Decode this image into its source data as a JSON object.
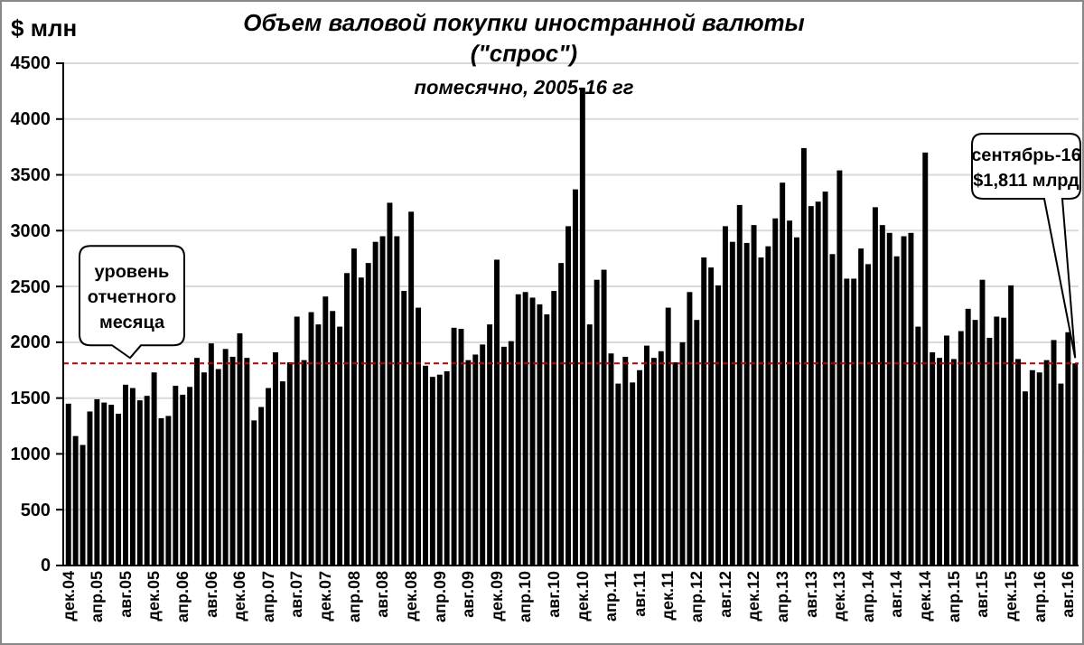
{
  "chart_data": {
    "type": "bar",
    "title": "Объем валовой покупки иностранной валюты\n(\"спрос\")",
    "subtitle": "помесячно, 2005-16 гг",
    "ylabel": "$ млн",
    "categories": [
      "дек.04",
      null,
      null,
      null,
      "апр.05",
      null,
      null,
      null,
      "авг.05",
      null,
      null,
      null,
      "дек.05",
      null,
      null,
      null,
      "апр.06",
      null,
      null,
      null,
      "авг.06",
      null,
      null,
      null,
      "дек.06",
      null,
      null,
      null,
      "апр.07",
      null,
      null,
      null,
      "авг.07",
      null,
      null,
      null,
      "дек.07",
      null,
      null,
      null,
      "апр.08",
      null,
      null,
      null,
      "авг.08",
      null,
      null,
      null,
      "дек.08",
      null,
      null,
      null,
      "апр.09",
      null,
      null,
      null,
      "авг.09",
      null,
      null,
      null,
      "дек.09",
      null,
      null,
      null,
      "апр.10",
      null,
      null,
      null,
      "авг.10",
      null,
      null,
      null,
      "дек.10",
      null,
      null,
      null,
      "апр.11",
      null,
      null,
      null,
      "авг.11",
      null,
      null,
      null,
      "дек.11",
      null,
      null,
      null,
      "апр.12",
      null,
      null,
      null,
      "авг.12",
      null,
      null,
      null,
      "дек.12",
      null,
      null,
      null,
      "апр.13",
      null,
      null,
      null,
      "авг.13",
      null,
      null,
      null,
      "дек.13",
      null,
      null,
      null,
      "апр.14",
      null,
      null,
      null,
      "авг.14",
      null,
      null,
      null,
      "дек.14",
      null,
      null,
      null,
      "апр.15",
      null,
      null,
      null,
      "авг.15",
      null,
      null,
      null,
      "дек.15",
      null,
      null,
      null,
      "апр.16",
      null,
      null,
      null,
      "авг.16",
      null
    ],
    "values": [
      1450,
      1160,
      1080,
      1380,
      1490,
      1460,
      1440,
      1360,
      1620,
      1590,
      1480,
      1520,
      1730,
      1320,
      1340,
      1610,
      1530,
      1600,
      1860,
      1730,
      1990,
      1760,
      1940,
      1870,
      2080,
      1860,
      1300,
      1420,
      1590,
      1910,
      1650,
      1820,
      2230,
      1840,
      2270,
      2160,
      2410,
      2280,
      2140,
      2620,
      2840,
      2580,
      2710,
      2900,
      2950,
      3250,
      2950,
      2460,
      3170,
      2310,
      1790,
      1690,
      1710,
      1740,
      2130,
      2120,
      1840,
      1890,
      1980,
      2160,
      2740,
      1960,
      2010,
      2430,
      2450,
      2400,
      2340,
      2250,
      2460,
      2710,
      3040,
      3370,
      4280,
      2160,
      2560,
      2650,
      1900,
      1630,
      1870,
      1640,
      1750,
      1970,
      1860,
      1920,
      2310,
      1820,
      2000,
      2450,
      2200,
      2760,
      2670,
      2510,
      3040,
      2900,
      3230,
      2890,
      3050,
      2760,
      2860,
      3110,
      3430,
      3090,
      2940,
      3740,
      3220,
      3260,
      3350,
      2790,
      3540,
      2570,
      2570,
      2840,
      2700,
      3210,
      3050,
      2980,
      2770,
      2950,
      2980,
      2140,
      3700,
      1910,
      1860,
      2060,
      1850,
      2100,
      2300,
      2200,
      2560,
      2040,
      2230,
      2220,
      2510,
      1850,
      1560,
      1750,
      1730,
      1840,
      2020,
      1630,
      2090,
      1811
    ],
    "color": "#000000",
    "ylim": [
      0,
      4500
    ],
    "yticks": [
      0,
      500,
      1000,
      1500,
      2000,
      2500,
      3000,
      3500,
      4000,
      4500
    ],
    "grid": "y",
    "ref_lines": [
      {
        "axis": "y",
        "value": 1811,
        "label": "уровень\nотчетного\nмесяца",
        "color": "#c00000",
        "line_style": "dashed"
      }
    ],
    "annotations": [
      "сентябрь-16\n$1,811 млрд"
    ]
  }
}
